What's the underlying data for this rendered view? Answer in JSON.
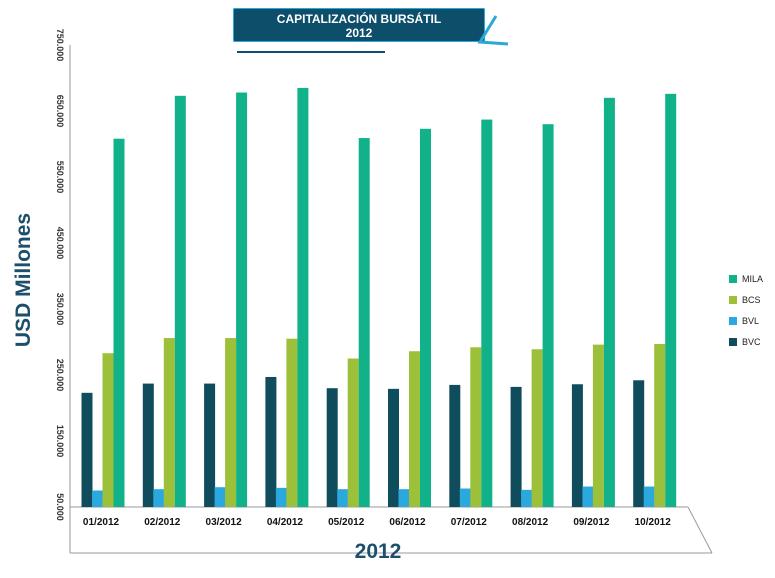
{
  "chart_data": {
    "type": "bar",
    "title": "CAPITALIZACIÓN BURSÁTIL 2012",
    "title_lines": [
      "CAPITALIZACIÓN BURSÁTIL",
      "2012"
    ],
    "xlabel": "2012",
    "ylabel": "USD Millones",
    "ylim": [
      50000,
      750000
    ],
    "yticks": [
      50000,
      150000,
      250000,
      350000,
      450000,
      550000,
      650000,
      750000
    ],
    "ytick_labels": [
      "50.000",
      "150.000",
      "250.000",
      "350.000",
      "450.000",
      "550.000",
      "650.000",
      "750.000"
    ],
    "grid": false,
    "legend_position": "right",
    "categories": [
      "01/2012",
      "02/2012",
      "03/2012",
      "04/2012",
      "05/2012",
      "06/2012",
      "07/2012",
      "08/2012",
      "09/2012",
      "10/2012"
    ],
    "series": [
      {
        "name": "BVC",
        "color": "#0f4d5c",
        "values": [
          223000,
          237000,
          237000,
          247000,
          230000,
          229000,
          235000,
          232000,
          236000,
          242000
        ]
      },
      {
        "name": "BVL",
        "color": "#2ba9de",
        "values": [
          75000,
          77000,
          80000,
          79000,
          77000,
          77000,
          78000,
          76000,
          81000,
          81000
        ]
      },
      {
        "name": "BCS",
        "color": "#9dc03b",
        "values": [
          283000,
          306000,
          306000,
          305000,
          275000,
          286000,
          292000,
          289000,
          296000,
          297000
        ]
      },
      {
        "name": "MILA",
        "color": "#11b18a",
        "values": [
          608000,
          673000,
          678000,
          685000,
          609000,
          623000,
          637000,
          630000,
          670000,
          676000
        ]
      }
    ]
  }
}
